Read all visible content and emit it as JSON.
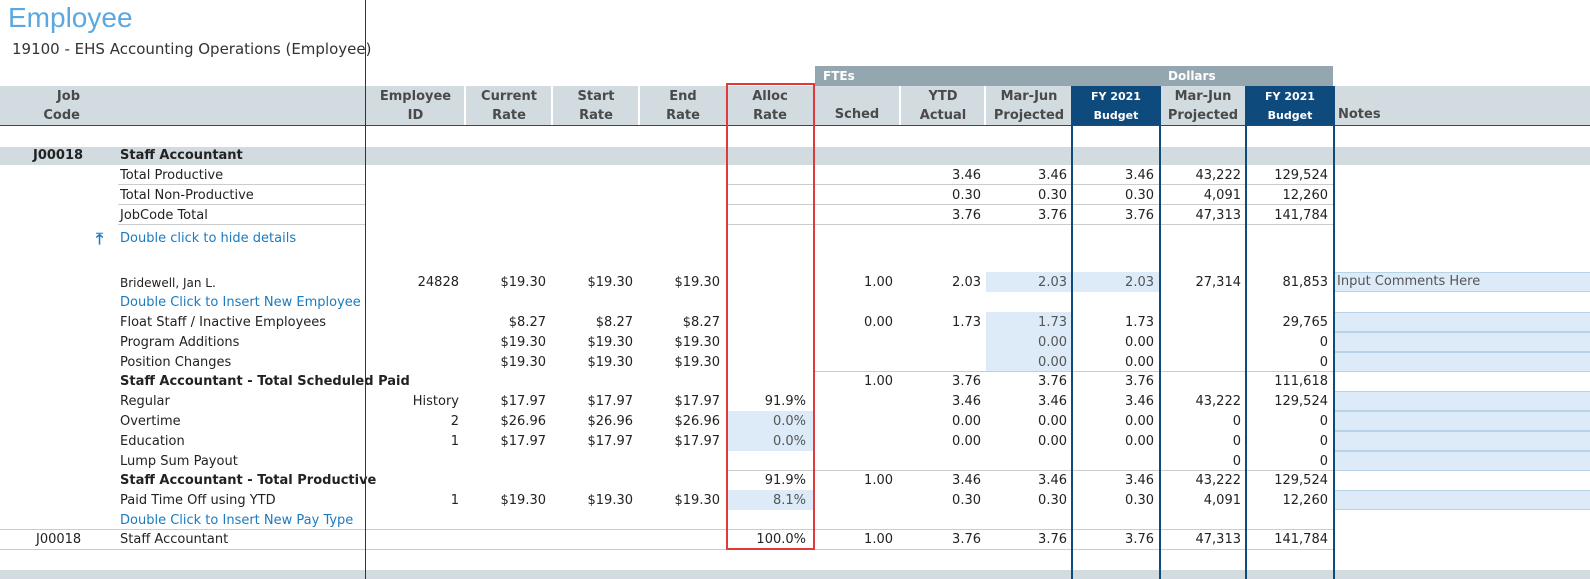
{
  "header": {
    "title": "Employee",
    "subtitle": "19100 - EHS Accounting Operations (Employee)"
  },
  "bands": {
    "ftes": "FTEs",
    "dollars": "Dollars"
  },
  "columns": {
    "job_code": [
      "Job",
      "Code"
    ],
    "employee_id": [
      "Employee",
      "ID"
    ],
    "current_rate": [
      "Current",
      "Rate"
    ],
    "start_rate": [
      "Start",
      "Rate"
    ],
    "end_rate": [
      "End",
      "Rate"
    ],
    "alloc_rate": [
      "Alloc",
      "Rate"
    ],
    "sched": "Sched",
    "ytd_actual": [
      "YTD",
      "Actual"
    ],
    "mar_jun_projected": [
      "Mar-Jun",
      "Projected"
    ],
    "fy2021_budget": [
      "FY 2021",
      "Budget"
    ],
    "d_mar_jun_projected": [
      "Mar-Jun",
      "Projected"
    ],
    "d_fy2021_budget": [
      "FY 2021",
      "Budget"
    ],
    "notes": "Notes"
  },
  "group": {
    "code": "J00018",
    "name": "Staff Accountant"
  },
  "summary": [
    {
      "label": "Total Productive",
      "ytd": "3.46",
      "proj": "3.46",
      "budget": "3.46",
      "d_proj": "43,222",
      "d_budget": "129,524"
    },
    {
      "label": "Total Non-Productive",
      "ytd": "0.30",
      "proj": "0.30",
      "budget": "0.30",
      "d_proj": "4,091",
      "d_budget": "12,260"
    },
    {
      "label": "JobCode Total",
      "ytd": "3.76",
      "proj": "3.76",
      "budget": "3.76",
      "d_proj": "47,313",
      "d_budget": "141,784"
    }
  ],
  "hide_details": "Double click to hide details",
  "rows": [
    {
      "label": "Bridewell, Jan L.",
      "id": "24828",
      "cur": "$19.30",
      "start": "$19.30",
      "end": "$19.30",
      "alloc": "",
      "sched": "1.00",
      "ytd": "2.03",
      "proj": "2.03",
      "budget": "2.03",
      "d_proj": "27,314",
      "d_budget": "81,853",
      "note": "Input Comments Here"
    },
    {
      "label": "Double Click to Insert New Employee"
    },
    {
      "label": "Float Staff / Inactive Employees",
      "id": "",
      "cur": "$8.27",
      "start": "$8.27",
      "end": "$8.27",
      "alloc": "",
      "sched": "0.00",
      "ytd": "1.73",
      "proj": "1.73",
      "budget": "1.73",
      "d_proj": "",
      "d_budget": "29,765"
    },
    {
      "label": "Program Additions",
      "id": "",
      "cur": "$19.30",
      "start": "$19.30",
      "end": "$19.30",
      "alloc": "",
      "sched": "",
      "ytd": "",
      "proj": "0.00",
      "budget": "0.00",
      "d_proj": "",
      "d_budget": "0"
    },
    {
      "label": "Position Changes",
      "id": "",
      "cur": "$19.30",
      "start": "$19.30",
      "end": "$19.30",
      "alloc": "",
      "sched": "",
      "ytd": "",
      "proj": "0.00",
      "budget": "0.00",
      "d_proj": "",
      "d_budget": "0"
    },
    {
      "label": "Staff Accountant - Total Scheduled Paid",
      "id": "",
      "cur": "",
      "start": "",
      "end": "",
      "alloc": "",
      "sched": "1.00",
      "ytd": "3.76",
      "proj": "3.76",
      "budget": "3.76",
      "d_proj": "",
      "d_budget": "111,618"
    },
    {
      "label": "Regular",
      "id": "History",
      "cur": "$17.97",
      "start": "$17.97",
      "end": "$17.97",
      "alloc": "91.9%",
      "sched": "",
      "ytd": "3.46",
      "proj": "3.46",
      "budget": "3.46",
      "d_proj": "43,222",
      "d_budget": "129,524"
    },
    {
      "label": "Overtime",
      "id": "2",
      "cur": "$26.96",
      "start": "$26.96",
      "end": "$26.96",
      "alloc": "0.0%",
      "sched": "",
      "ytd": "0.00",
      "proj": "0.00",
      "budget": "0.00",
      "d_proj": "0",
      "d_budget": "0"
    },
    {
      "label": "Education",
      "id": "1",
      "cur": "$17.97",
      "start": "$17.97",
      "end": "$17.97",
      "alloc": "0.0%",
      "sched": "",
      "ytd": "0.00",
      "proj": "0.00",
      "budget": "0.00",
      "d_proj": "0",
      "d_budget": "0"
    },
    {
      "label": "Lump Sum Payout",
      "id": "",
      "cur": "",
      "start": "",
      "end": "",
      "alloc": "",
      "sched": "",
      "ytd": "",
      "proj": "",
      "budget": "",
      "d_proj": "0",
      "d_budget": "0"
    },
    {
      "label": "Staff Accountant - Total Productive",
      "id": "",
      "cur": "",
      "start": "",
      "end": "",
      "alloc": "91.9%",
      "sched": "1.00",
      "ytd": "3.46",
      "proj": "3.46",
      "budget": "3.46",
      "d_proj": "43,222",
      "d_budget": "129,524"
    },
    {
      "label": "Paid Time Off using YTD",
      "id": "1",
      "cur": "$19.30",
      "start": "$19.30",
      "end": "$19.30",
      "alloc": "8.1%",
      "sched": "",
      "ytd": "0.30",
      "proj": "0.30",
      "budget": "0.30",
      "d_proj": "4,091",
      "d_budget": "12,260"
    },
    {
      "label": "Double Click to Insert New Pay Type"
    },
    {
      "code": "J00018",
      "label": "Staff Accountant",
      "alloc": "100.0%",
      "sched": "1.00",
      "ytd": "3.76",
      "proj": "3.76",
      "budget": "3.76",
      "d_proj": "47,313",
      "d_budget": "141,784"
    }
  ]
}
